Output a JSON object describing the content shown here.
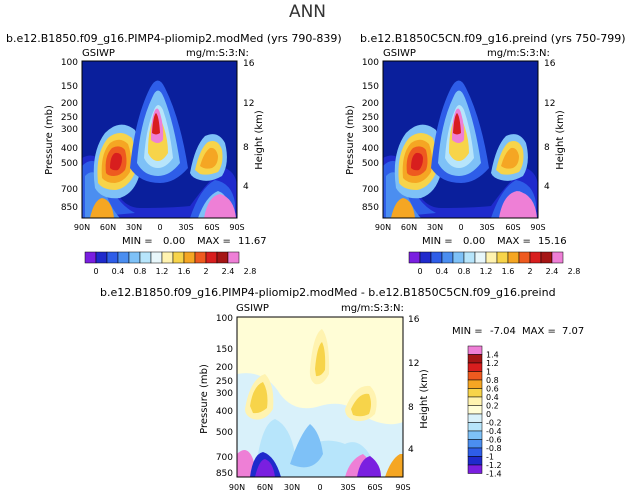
{
  "page": {
    "title": "ANN"
  },
  "colors": {
    "bg": "#0a1f9c",
    "sat_scale": [
      "#7a1fe0",
      "#1f2acc",
      "#2e5de8",
      "#4b8ef0",
      "#7ec1f7",
      "#b7e5fb",
      "#e8f7fb",
      "#fff3b0",
      "#f7d44a",
      "#f5a623",
      "#ee5a1f",
      "#d81e1e",
      "#a51515",
      "#ee7fd6"
    ],
    "diff_scale": [
      "#7a1fe0",
      "#1f2acc",
      "#2e5de8",
      "#4b8ef0",
      "#7ec1f7",
      "#b7e5fb",
      "#d9f1fa",
      "#fffdd6",
      "#fff3b0",
      "#f7d44a",
      "#f5a623",
      "#ee5a1f",
      "#d81e1e",
      "#a51515",
      "#ee7fd6"
    ]
  },
  "chart_data": [
    {
      "type": "heatmap",
      "title": "b.e12.B1850.f09_g16.PIMP4-pliomip2.modMed (yrs 790-839)",
      "left_label": "GSIWP",
      "right_label": "mg/m:S:3:N:",
      "ylabel": "Pressure (mb)",
      "y2label": "Height (km)",
      "xticks": [
        "90N",
        "60N",
        "30N",
        "0",
        "30S",
        "60S",
        "90S"
      ],
      "yticks": [
        "100",
        "150",
        "200",
        "250",
        "300",
        "400",
        "500",
        "700",
        "850"
      ],
      "y2ticks": [
        "16",
        "12",
        "8",
        "4"
      ],
      "min_label": "MIN =",
      "min_value": "0.00",
      "max_label": "MAX =",
      "max_value": "11.67"
    },
    {
      "type": "heatmap",
      "title": "b.e12.B1850C5CN.f09_g16.preind (yrs 750-799)",
      "left_label": "GSIWP",
      "right_label": "mg/m:S:3:N:",
      "ylabel": "Pressure (mb)",
      "y2label": "Height (km)",
      "xticks": [
        "90N",
        "60N",
        "30N",
        "0",
        "30S",
        "60S",
        "90S"
      ],
      "yticks": [
        "100",
        "150",
        "200",
        "250",
        "300",
        "400",
        "500",
        "700",
        "850"
      ],
      "y2ticks": [
        "16",
        "12",
        "8",
        "4"
      ],
      "min_label": "MIN =",
      "min_value": "0.00",
      "max_label": "MAX =",
      "max_value": "15.16"
    },
    {
      "type": "heatmap",
      "title": "b.e12.B1850.f09_g16.PIMP4-pliomip2.modMed - b.e12.B1850C5CN.f09_g16.preind",
      "left_label": "GSIWP",
      "right_label": "mg/m:S:3:N:",
      "ylabel": "Pressure (mb)",
      "y2label": "Height (km)",
      "xticks": [
        "90N",
        "60N",
        "30N",
        "0",
        "30S",
        "60S",
        "90S"
      ],
      "yticks": [
        "100",
        "150",
        "200",
        "250",
        "300",
        "400",
        "500",
        "700",
        "850"
      ],
      "y2ticks": [
        "16",
        "12",
        "8",
        "4"
      ],
      "min_label": "MIN =",
      "min_value": "-7.04",
      "max_label": "MAX =",
      "max_value": "7.07"
    }
  ],
  "colorbar_top": {
    "labels": [
      "0",
      "0.4",
      "0.8",
      "1.2",
      "1.6",
      "2",
      "2.4",
      "2.8"
    ]
  },
  "colorbar_diff": {
    "labels": [
      "1.4",
      "1.2",
      "1",
      "0.8",
      "0.6",
      "0.4",
      "0.2",
      "0",
      "-0.2",
      "-0.4",
      "-0.6",
      "-0.8",
      "-1",
      "-1.2",
      "-1.4"
    ]
  }
}
